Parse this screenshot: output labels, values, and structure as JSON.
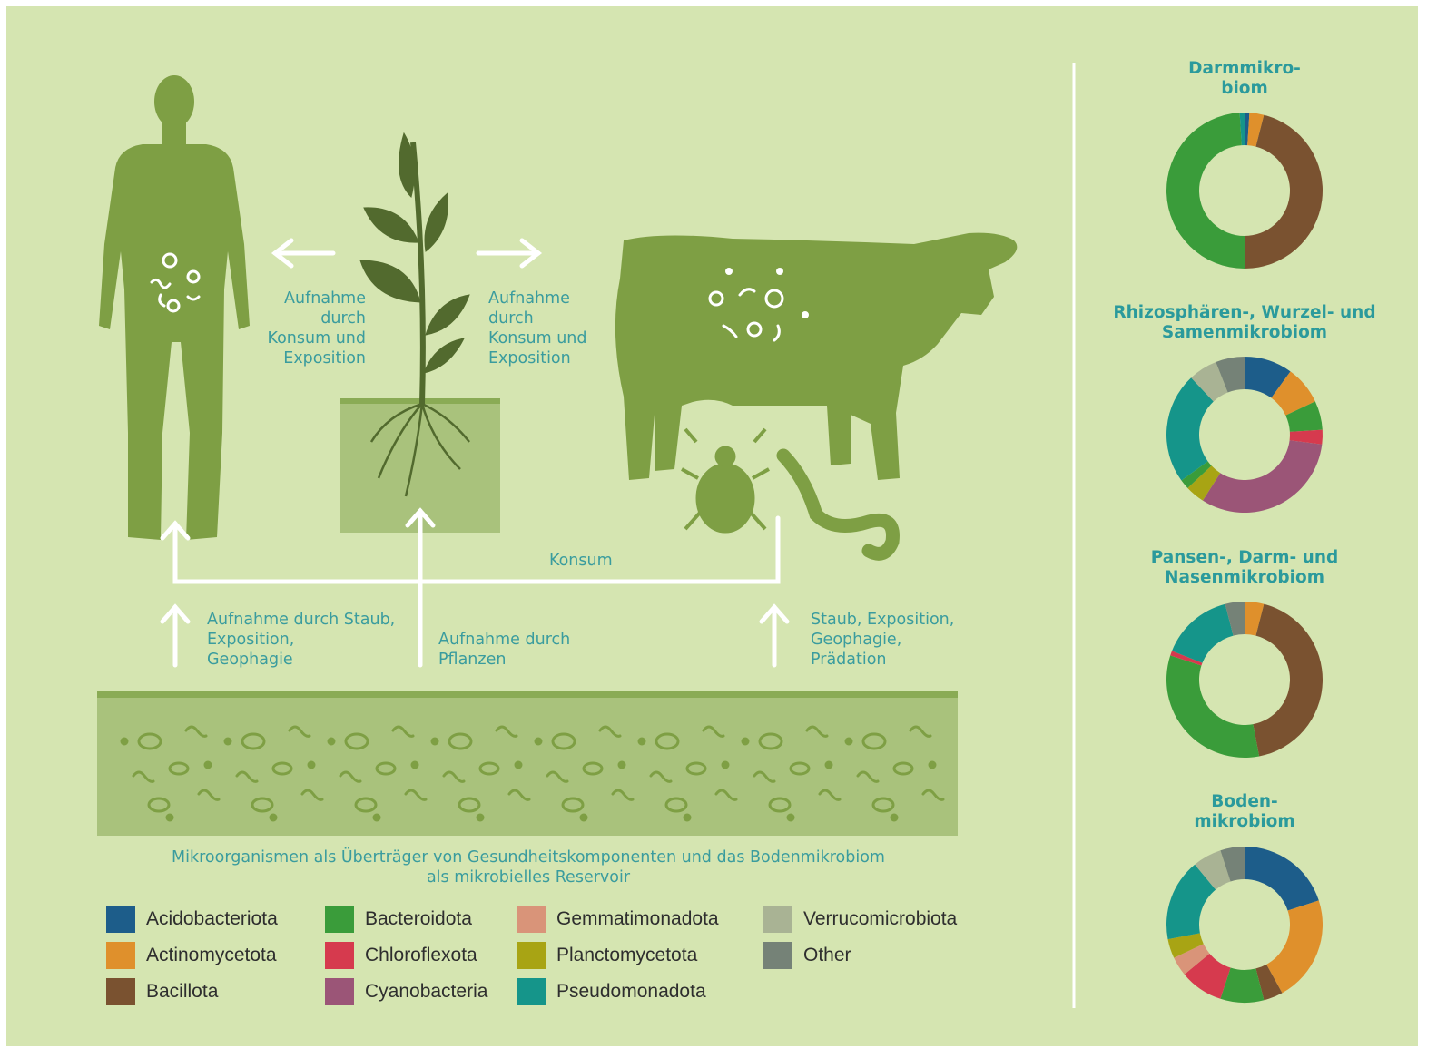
{
  "labels": {
    "human_uptake": "Aufnahme\ndurch\nKonsum und\nExposition",
    "cow_uptake": "Aufnahme\ndurch\nKonsum und\nExposition",
    "konsum": "Konsum",
    "soil_to_human": "Aufnahme durch Staub,\nExposition,\nGeophagie",
    "soil_to_plant": "Aufnahme durch\nPflanzen",
    "soil_to_animal": "Staub, Exposition,\nGeophagie,\nPrädation",
    "caption": "Mikroorganismen als Überträger von Gesundheitskomponenten und das Bodenmikrobiom\nals mikrobielles Reservoir"
  },
  "legend": [
    {
      "name": "Acidobacteriota",
      "color": "#1d5d8a"
    },
    {
      "name": "Actinomycetota",
      "color": "#df902c"
    },
    {
      "name": "Bacillota",
      "color": "#7a5230"
    },
    {
      "name": "Bacteroidota",
      "color": "#3a9c3a"
    },
    {
      "name": "Chloroflexota",
      "color": "#d63a4e"
    },
    {
      "name": "Cyanobacteria",
      "color": "#9b5577"
    },
    {
      "name": "Gemmatimonadota",
      "color": "#d99479"
    },
    {
      "name": "Planctomycetota",
      "color": "#a8a414"
    },
    {
      "name": "Pseudomonadota",
      "color": "#15958a"
    },
    {
      "name": "Verrucomicrobiota",
      "color": "#a9b394"
    },
    {
      "name": "Other",
      "color": "#758277"
    }
  ],
  "chart_data": [
    {
      "type": "pie",
      "title": "Darmmikro-\nbiom",
      "categories": [
        "Acidobacteriota",
        "Actinomycetota",
        "Bacillota",
        "Bacteroidota",
        "Pseudomonadota"
      ],
      "values": [
        1,
        3,
        46,
        49,
        1
      ]
    },
    {
      "type": "pie",
      "title": "Rhizosphären-, Wurzel- und\nSamenmikrobiom",
      "categories": [
        "Acidobacteriota",
        "Actinomycetota",
        "Bacteroidota",
        "Chloroflexota",
        "Cyanobacteria",
        "Planctomycetota",
        "Bacteroidota",
        "Pseudomonadota",
        "Verrucomicrobiota",
        "Other"
      ],
      "values": [
        10,
        8,
        6,
        3,
        32,
        4,
        2,
        23,
        6,
        6
      ]
    },
    {
      "type": "pie",
      "title": "Pansen-, Darm- und\nNasenmikrobiom",
      "categories": [
        "Actinomycetota",
        "Bacillota",
        "Bacteroidota",
        "Chloroflexota",
        "Pseudomonadota",
        "Other"
      ],
      "values": [
        4,
        43,
        33,
        1,
        15,
        4
      ]
    },
    {
      "type": "pie",
      "title": "Boden-\nmikrobiom",
      "categories": [
        "Acidobacteriota",
        "Actinomycetota",
        "Bacillota",
        "Bacteroidota",
        "Chloroflexota",
        "Gemmatimonadota",
        "Planctomycetota",
        "Pseudomonadota",
        "Verrucomicrobiota",
        "Other"
      ],
      "values": [
        20,
        22,
        4,
        9,
        9,
        4,
        4,
        17,
        6,
        5
      ]
    }
  ]
}
